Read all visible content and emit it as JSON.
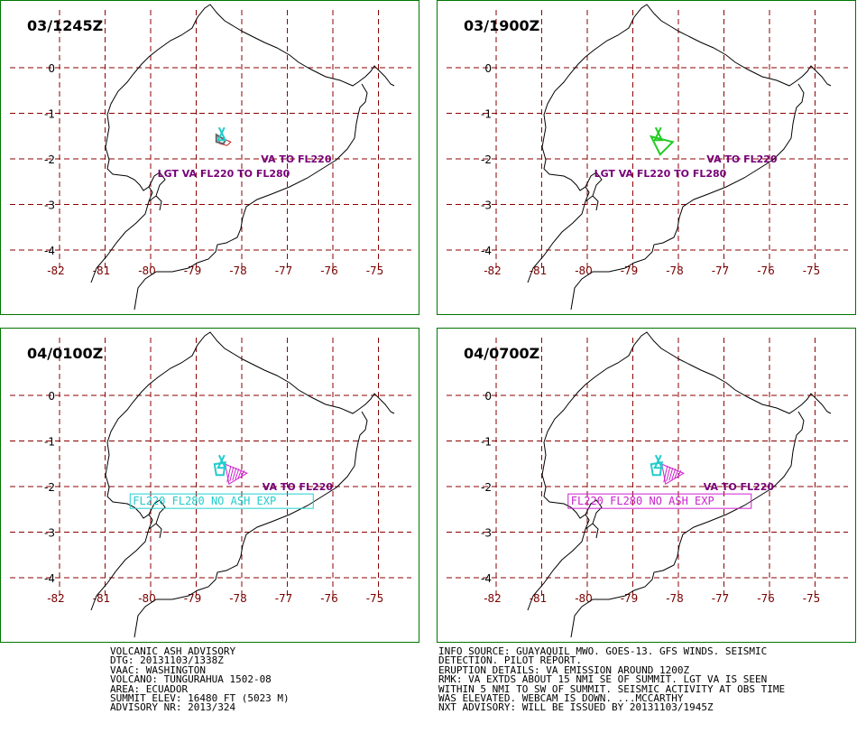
{
  "colors": {
    "frame": "#007700",
    "grid": "#8b0000",
    "coast": "#000000",
    "purple": "#770077",
    "cyan": "#22cccc",
    "green": "#22cc22",
    "magenta": "#cc22cc"
  },
  "axes": {
    "lat_labels": [
      "0",
      "-1",
      "-2",
      "-3",
      "-4"
    ],
    "lon_labels": [
      "-82",
      "-81",
      "-80",
      "-79",
      "-78",
      "-77",
      "-76",
      "-75"
    ]
  },
  "panels": [
    {
      "time": "03/1245Z",
      "color": "cyan",
      "labels": [
        {
          "text": "VA TO FL220",
          "lon": -77.58,
          "lat": -2.0
        },
        {
          "text": "LGT VA FL220 TO FL280",
          "lon": -79.85,
          "lat": -2.32
        }
      ]
    },
    {
      "time": "03/1900Z",
      "color": "green",
      "labels": [
        {
          "text": "VA TO FL220",
          "lon": -77.38,
          "lat": -2.0
        },
        {
          "text": "LGT VA FL220 TO FL280",
          "lon": -79.85,
          "lat": -2.32
        }
      ]
    },
    {
      "time": "04/0100Z",
      "color": "cyan",
      "labels": [
        {
          "text": "VA TO FL220",
          "lon": -77.55,
          "lat": -2.0
        }
      ],
      "box": {
        "text": "FL220 FL280 NO ASH EXP",
        "lon": -80.45,
        "lat": -2.32
      }
    },
    {
      "time": "04/0700Z",
      "color": "magenta",
      "labels": [
        {
          "text": "VA TO FL220",
          "lon": -77.45,
          "lat": -2.0
        }
      ],
      "box": {
        "text": "FL220 FL280 NO ASH EXP",
        "lon": -80.42,
        "lat": -2.32
      }
    }
  ],
  "advisory_left": [
    "VOLCANIC ASH ADVISORY",
    "DTG: 20131103/1338Z",
    "VAAC: WASHINGTON",
    "VOLCANO: TUNGURAHUA 1502-08",
    "AREA: ECUADOR",
    "SUMMIT ELEV: 16480 FT (5023 M)",
    "ADVISORY NR: 2013/324"
  ],
  "advisory_right": [
    "INFO SOURCE: GUAYAQUIL MWO. GOES-13. GFS WINDS. SEISMIC",
    "DETECTION. PILOT REPORT.",
    "ERUPTION DETAILS: VA EMISSION AROUND 1200Z",
    "RMK: VA EXTDS ABOUT 15 NMI SE OF SUMMIT. LGT VA IS SEEN",
    "WITHIN 5 NMI TO SW OF SUMMIT. SEISMIC ACTIVITY AT OBS TIME",
    "WAS ELEVATED. WEBCAM IS DOWN. ...MCCARTHY",
    "NXT ADVISORY: WILL BE ISSUED BY 20131103/1945Z"
  ]
}
